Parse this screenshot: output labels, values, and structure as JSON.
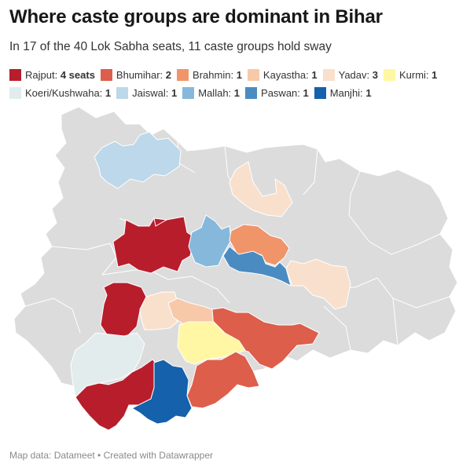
{
  "title": "Where caste groups are dominant in Bihar",
  "subtitle": "In 17 of the 40 Lok Sabha seats, 11 caste groups hold sway",
  "legend": [
    {
      "label": "Rajput:",
      "value": "4 seats",
      "color": "#b81d2c"
    },
    {
      "label": "Bhumihar:",
      "value": "2",
      "color": "#dd5e4b"
    },
    {
      "label": "Brahmin:",
      "value": "1",
      "color": "#f0956a"
    },
    {
      "label": "Kayastha:",
      "value": "1",
      "color": "#f7c9a9"
    },
    {
      "label": "Yadav:",
      "value": "3",
      "color": "#f9e0cd"
    },
    {
      "label": "Kurmi:",
      "value": "1",
      "color": "#fff7a3"
    },
    {
      "label": "Koeri/Kushwaha:",
      "value": "1",
      "color": "#e2eced"
    },
    {
      "label": "Jaiswal:",
      "value": "1",
      "color": "#bcd8ea"
    },
    {
      "label": "Mallah:",
      "value": "1",
      "color": "#86b8dc"
    },
    {
      "label": "Paswan:",
      "value": "1",
      "color": "#4a8cc2"
    },
    {
      "label": "Manjhi:",
      "value": "1",
      "color": "#1561ab"
    }
  ],
  "map": {
    "base_color": "#dcdcdc",
    "border_color": "#ffffff"
  },
  "footer": "Map data: Datameet • Created with Datawrapper"
}
